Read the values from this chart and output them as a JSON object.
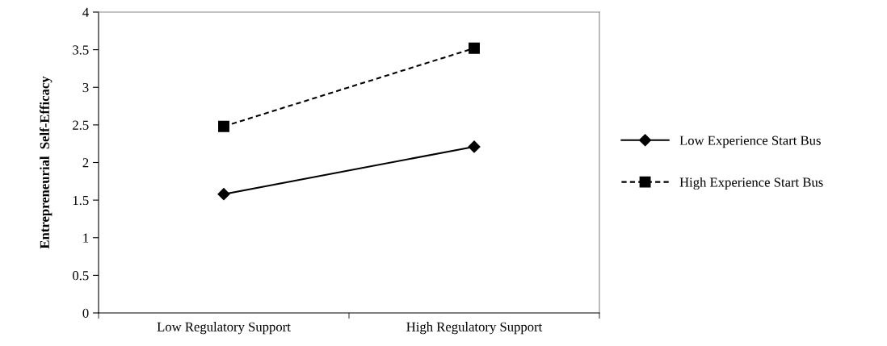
{
  "chart_data": {
    "type": "line",
    "ylabel": "Entrepreneurial  Self-Efficacy",
    "categories": [
      "Low Regulatory Support",
      "High Regulatory Support"
    ],
    "ylim": [
      0,
      4
    ],
    "yticks": [
      0,
      0.5,
      1,
      1.5,
      2,
      2.5,
      3,
      3.5,
      4
    ],
    "legend": "right",
    "series": [
      {
        "name": "Low Experience Start Bus",
        "color": "#000000",
        "values": [
          1.58,
          2.21
        ],
        "marker": "diamond",
        "line_style": "solid"
      },
      {
        "name": "High Experience Start Bus",
        "color": "#000000",
        "values": [
          2.48,
          3.52
        ],
        "marker": "square",
        "line_style": "dashed"
      }
    ]
  }
}
